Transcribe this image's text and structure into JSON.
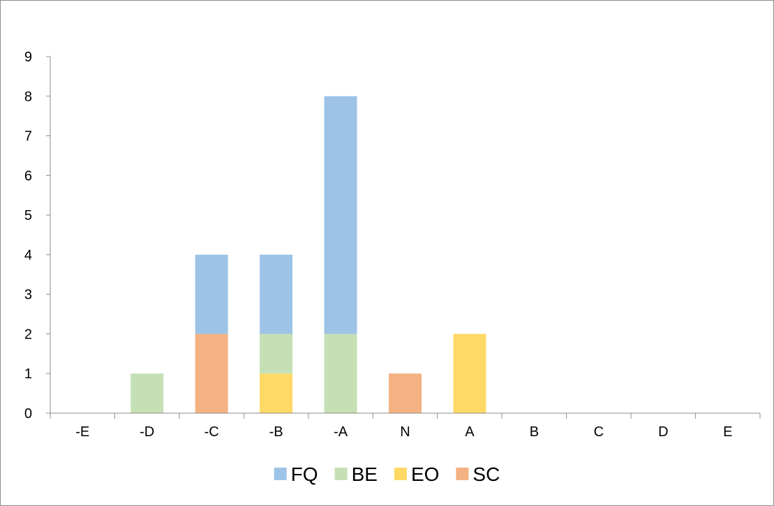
{
  "chart_data": {
    "type": "bar",
    "stacked": true,
    "categories": [
      "-E",
      "-D",
      "-C",
      "-B",
      "-A",
      "N",
      "A",
      "B",
      "C",
      "D",
      "E"
    ],
    "series": [
      {
        "name": "FQ",
        "color": "#9dc3e6",
        "values": [
          0,
          0,
          2,
          2,
          6,
          0,
          0,
          0,
          0,
          0,
          0
        ]
      },
      {
        "name": "BE",
        "color": "#c5e0b4",
        "values": [
          0,
          1,
          0,
          1,
          2,
          0,
          0,
          0,
          0,
          0,
          0
        ]
      },
      {
        "name": "EO",
        "color": "#ffd966",
        "values": [
          0,
          0,
          0,
          1,
          0,
          0,
          2,
          0,
          0,
          0,
          0
        ]
      },
      {
        "name": "SC",
        "color": "#f4b183",
        "values": [
          0,
          0,
          2,
          0,
          0,
          1,
          0,
          0,
          0,
          0,
          0
        ]
      }
    ],
    "stack_order": [
      "SC",
      "EO",
      "BE",
      "FQ"
    ],
    "title": "",
    "xlabel": "",
    "ylabel": "",
    "ylim": [
      0,
      9
    ],
    "yticks": [
      0,
      1,
      2,
      3,
      4,
      5,
      6,
      7,
      8,
      9
    ],
    "grid": false,
    "legend_position": "bottom"
  }
}
